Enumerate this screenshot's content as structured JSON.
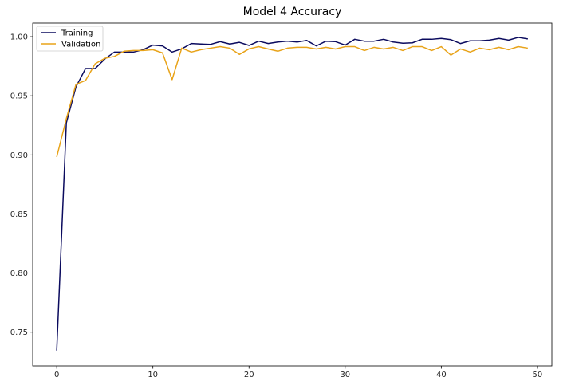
{
  "chart_data": {
    "type": "line",
    "title": "Model 4 Accuracy",
    "xlabel": "",
    "ylabel": "",
    "xlim": [
      -2.5,
      51.5
    ],
    "ylim": [
      0.7215,
      1.0115
    ],
    "x_ticks": [
      0,
      10,
      20,
      30,
      40,
      50
    ],
    "y_ticks": [
      0.75,
      0.8,
      0.85,
      0.9,
      0.95,
      1.0
    ],
    "y_tick_labels": [
      "0.75",
      "0.80",
      "0.85",
      "0.90",
      "0.95",
      "1.00"
    ],
    "grid": false,
    "legend_position": "top-left",
    "x": [
      0,
      1,
      2,
      3,
      4,
      5,
      6,
      7,
      8,
      9,
      10,
      11,
      12,
      13,
      14,
      15,
      16,
      17,
      18,
      19,
      20,
      21,
      22,
      23,
      24,
      25,
      26,
      27,
      28,
      29,
      30,
      31,
      32,
      33,
      34,
      35,
      36,
      37,
      38,
      39,
      40,
      41,
      42,
      43,
      44,
      45,
      46,
      47,
      48,
      49
    ],
    "series": [
      {
        "name": "Training",
        "color": "#0b0b5e",
        "values": [
          0.7345,
          0.9271,
          0.9575,
          0.9731,
          0.9731,
          0.9811,
          0.987,
          0.987,
          0.987,
          0.989,
          0.9929,
          0.9922,
          0.987,
          0.9897,
          0.9942,
          0.9938,
          0.9935,
          0.9958,
          0.9938,
          0.9952,
          0.9926,
          0.9962,
          0.9942,
          0.9955,
          0.9962,
          0.9955,
          0.9968,
          0.9922,
          0.9962,
          0.9958,
          0.9929,
          0.9978,
          0.9962,
          0.9962,
          0.9978,
          0.9955,
          0.9945,
          0.9948,
          0.9978,
          0.9978,
          0.9985,
          0.9975,
          0.9942,
          0.9965,
          0.9965,
          0.9971,
          0.9985,
          0.9971,
          0.9994,
          0.9981
        ]
      },
      {
        "name": "Validation",
        "color": "#e8a319",
        "values": [
          0.8982,
          0.9307,
          0.9597,
          0.963,
          0.9771,
          0.9817,
          0.9833,
          0.9877,
          0.9883,
          0.9883,
          0.989,
          0.9863,
          0.9637,
          0.9903,
          0.987,
          0.989,
          0.9903,
          0.9916,
          0.9903,
          0.985,
          0.9897,
          0.9916,
          0.9896,
          0.9877,
          0.9903,
          0.991,
          0.991,
          0.9896,
          0.991,
          0.9896,
          0.9916,
          0.9916,
          0.9883,
          0.991,
          0.9896,
          0.991,
          0.9883,
          0.9916,
          0.9916,
          0.9883,
          0.9916,
          0.9844,
          0.9896,
          0.987,
          0.9903,
          0.989,
          0.991,
          0.989,
          0.9916,
          0.9903
        ]
      }
    ]
  }
}
